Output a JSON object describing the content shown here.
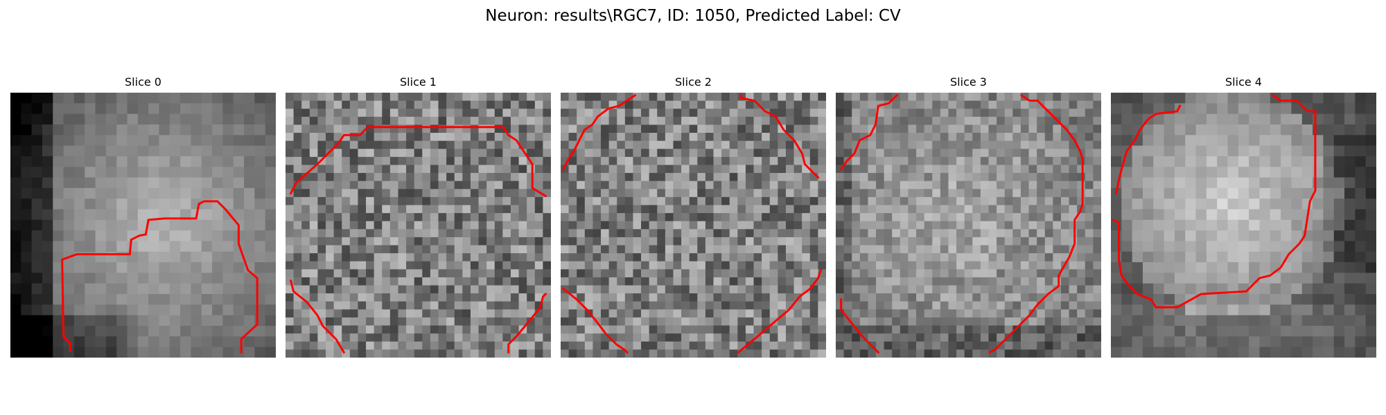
{
  "figure": {
    "title": "Neuron: results\\RGC7, ID: 1050, Predicted Label: CV"
  },
  "colors": {
    "contour": "#ff0000",
    "background": "#ffffff"
  },
  "panels": [
    {
      "title": "Slice 0",
      "grid": 25,
      "pattern": "blob-left-bright",
      "seed": 11
    },
    {
      "title": "Slice 1",
      "grid": 33,
      "pattern": "noise",
      "seed": 23
    },
    {
      "title": "Slice 2",
      "grid": 33,
      "pattern": "noise",
      "seed": 37
    },
    {
      "title": "Slice 3",
      "grid": 33,
      "pattern": "soft-blob",
      "seed": 41
    },
    {
      "title": "Slice 4",
      "grid": 25,
      "pattern": "bright-blob-dark-ring",
      "seed": 53
    }
  ]
}
